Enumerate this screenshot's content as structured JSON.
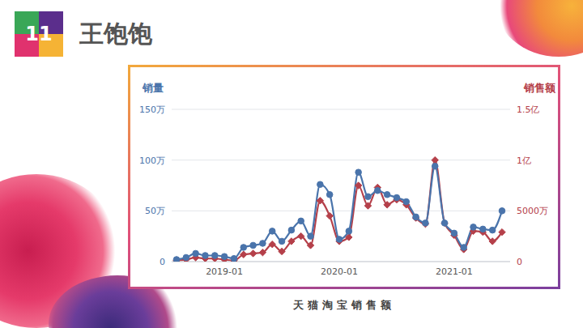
{
  "slide": {
    "number": "11",
    "title": "王饱饱",
    "caption": "天猫淘宝销售额"
  },
  "chart_data": {
    "type": "line",
    "categories": [
      null,
      null,
      null,
      null,
      null,
      "2019-01",
      null,
      null,
      null,
      null,
      null,
      null,
      null,
      null,
      null,
      null,
      null,
      "2020-01",
      null,
      null,
      null,
      null,
      null,
      null,
      null,
      null,
      null,
      null,
      null,
      "2021-01",
      null,
      null,
      null,
      null,
      null
    ],
    "series": [
      {
        "name": "销售额",
        "color": "#b5404a",
        "marker": "diamond",
        "axis": "y2",
        "values": [
          1000000,
          2000000,
          4000000,
          3000000,
          3000000,
          2000000,
          1000000,
          7000000,
          8000000,
          9000000,
          17000000,
          10000000,
          20000000,
          25000000,
          16000000,
          60000000,
          45000000,
          20000000,
          24000000,
          75000000,
          55000000,
          73000000,
          56000000,
          61000000,
          56000000,
          43000000,
          37000000,
          100000000,
          38000000,
          26000000,
          12000000,
          30000000,
          29000000,
          20000000,
          29000000
        ]
      },
      {
        "name": "销量",
        "color": "#4a74ab",
        "marker": "circle",
        "values": [
          20000,
          40000,
          80000,
          60000,
          60000,
          50000,
          30000,
          140000,
          160000,
          180000,
          300000,
          200000,
          310000,
          400000,
          250000,
          760000,
          660000,
          220000,
          300000,
          880000,
          640000,
          700000,
          660000,
          630000,
          590000,
          440000,
          380000,
          940000,
          380000,
          280000,
          140000,
          340000,
          320000,
          310000,
          500000
        ]
      }
    ],
    "ylim": [
      0,
      1500000
    ],
    "yticks": [
      0,
      {
        "value": 500000,
        "label": "50万"
      },
      {
        "value": 1000000,
        "label": "100万"
      },
      {
        "value": 1500000,
        "label": "150万"
      }
    ],
    "y2lim": [
      0,
      150000000
    ],
    "y2ticks": [
      0,
      {
        "value": 50000000,
        "label": "5000万"
      },
      {
        "value": 100000000,
        "label": "1亿"
      },
      {
        "value": 150000000,
        "label": "1.5亿"
      }
    ],
    "grid": true
  }
}
